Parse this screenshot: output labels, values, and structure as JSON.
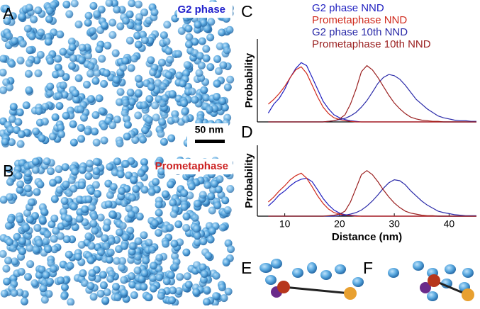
{
  "panels": {
    "A": "A",
    "B": "B",
    "C": "C",
    "D": "D",
    "E": "E",
    "F": "F"
  },
  "images": {
    "top_label": "G2 phase",
    "bottom_label": "Prometaphase",
    "scale_bar": "50 nm"
  },
  "chart_data": [
    {
      "type": "line",
      "y_label": "Probability",
      "xlim": [
        5,
        45
      ],
      "ylim": [
        0,
        1.4
      ],
      "x": [
        7,
        8,
        9,
        10,
        11,
        12,
        13,
        14,
        15,
        16,
        17,
        18,
        19,
        20,
        21,
        22,
        23,
        24,
        25,
        26,
        27,
        28,
        29,
        30,
        31,
        32,
        33,
        34,
        35,
        36,
        37,
        38,
        39,
        40,
        41,
        42,
        43,
        44,
        45
      ],
      "series": [
        {
          "name": "G2 phase NND",
          "color": "#1f1fc0",
          "values": [
            0.15,
            0.3,
            0.4,
            0.55,
            0.75,
            0.9,
            1,
            0.95,
            0.75,
            0.55,
            0.35,
            0.22,
            0.12,
            0.07,
            0.04,
            0.02,
            0.01,
            0,
            0,
            0,
            0,
            0,
            0,
            0,
            0,
            0,
            0,
            0,
            0,
            0,
            0,
            0,
            0,
            0,
            0,
            0,
            0,
            0,
            0
          ]
        },
        {
          "name": "Prometaphase NND",
          "color": "#d02a1c",
          "values": [
            0.3,
            0.38,
            0.48,
            0.6,
            0.75,
            0.88,
            0.93,
            0.82,
            0.62,
            0.42,
            0.25,
            0.14,
            0.07,
            0.04,
            0.02,
            0.01,
            0,
            0,
            0,
            0,
            0,
            0,
            0,
            0,
            0,
            0,
            0,
            0,
            0,
            0,
            0,
            0,
            0,
            0,
            0,
            0,
            0,
            0,
            0
          ]
        },
        {
          "name": "G2 phase 10th NND",
          "color": "#2a2aa8",
          "values": [
            0,
            0,
            0,
            0,
            0,
            0,
            0,
            0,
            0,
            0,
            0,
            0.01,
            0.02,
            0.04,
            0.06,
            0.1,
            0.16,
            0.25,
            0.36,
            0.5,
            0.65,
            0.75,
            0.8,
            0.78,
            0.72,
            0.62,
            0.5,
            0.38,
            0.3,
            0.22,
            0.16,
            0.1,
            0.07,
            0.05,
            0.03,
            0.02,
            0.02,
            0.01,
            0.01
          ]
        },
        {
          "name": "Prometaphase 10th NND",
          "color": "#9a1f1f",
          "values": [
            0,
            0,
            0,
            0,
            0,
            0,
            0,
            0,
            0,
            0,
            0,
            0.01,
            0.02,
            0.05,
            0.12,
            0.3,
            0.55,
            0.85,
            0.95,
            0.88,
            0.75,
            0.6,
            0.45,
            0.32,
            0.22,
            0.14,
            0.08,
            0.05,
            0.03,
            0.02,
            0.01,
            0.01,
            0,
            0,
            0,
            0,
            0,
            0,
            0
          ]
        }
      ]
    },
    {
      "type": "line",
      "y_label": "Probability",
      "x_label": "Distance (nm)",
      "xlim": [
        5,
        45
      ],
      "ylim": [
        0,
        1.4
      ],
      "xticks": [
        10,
        20,
        30,
        40
      ],
      "x": [
        7,
        8,
        9,
        10,
        11,
        12,
        13,
        14,
        15,
        16,
        17,
        18,
        19,
        20,
        21,
        22,
        23,
        24,
        25,
        26,
        27,
        28,
        29,
        30,
        31,
        32,
        33,
        34,
        35,
        36,
        37,
        38,
        39,
        40,
        41,
        42,
        43,
        44,
        45
      ],
      "series": [
        {
          "color": "#1f1fc0",
          "values": [
            0.2,
            0.3,
            0.42,
            0.5,
            0.6,
            0.68,
            0.73,
            0.75,
            0.68,
            0.52,
            0.35,
            0.22,
            0.12,
            0.06,
            0.03,
            0.02,
            0.01,
            0,
            0,
            0,
            0,
            0,
            0,
            0,
            0,
            0,
            0,
            0,
            0,
            0,
            0,
            0,
            0,
            0,
            0,
            0,
            0,
            0,
            0
          ]
        },
        {
          "color": "#d02a1c",
          "values": [
            0.28,
            0.38,
            0.5,
            0.6,
            0.72,
            0.8,
            0.85,
            0.75,
            0.58,
            0.4,
            0.25,
            0.14,
            0.07,
            0.04,
            0.02,
            0.01,
            0,
            0,
            0,
            0,
            0,
            0,
            0,
            0,
            0,
            0,
            0,
            0,
            0,
            0,
            0,
            0,
            0,
            0,
            0,
            0,
            0,
            0,
            0
          ]
        },
        {
          "color": "#2a2aa8",
          "values": [
            0,
            0,
            0,
            0,
            0,
            0,
            0,
            0,
            0,
            0,
            0,
            0,
            0,
            0.01,
            0.02,
            0.04,
            0.07,
            0.12,
            0.2,
            0.3,
            0.42,
            0.55,
            0.66,
            0.72,
            0.7,
            0.62,
            0.5,
            0.4,
            0.3,
            0.22,
            0.16,
            0.1,
            0.07,
            0.05,
            0.03,
            0.02,
            0.01,
            0.01,
            0.01
          ]
        },
        {
          "color": "#9a1f1f",
          "values": [
            0,
            0,
            0,
            0,
            0,
            0,
            0,
            0,
            0,
            0,
            0,
            0.01,
            0.02,
            0.04,
            0.1,
            0.28,
            0.55,
            0.82,
            0.9,
            0.82,
            0.68,
            0.52,
            0.38,
            0.26,
            0.17,
            0.1,
            0.06,
            0.04,
            0.02,
            0.01,
            0.01,
            0,
            0,
            0,
            0,
            0,
            0,
            0,
            0
          ]
        }
      ]
    }
  ]
}
